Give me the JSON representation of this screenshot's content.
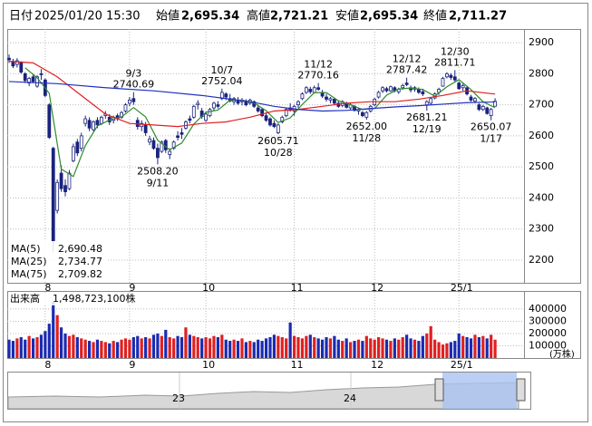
{
  "header": {
    "date_label": "日付",
    "datetime": "2025/01/20 15:30",
    "items": [
      {
        "label": "始値",
        "value": "2,695.34",
        "color": "#000000"
      },
      {
        "label": "高値",
        "value": "2,721.21",
        "color": "#dd0000"
      },
      {
        "label": "安値",
        "value": "2,695.34",
        "color": "#008800"
      },
      {
        "label": "終値",
        "value": "2,711.27",
        "color": "#000000"
      }
    ]
  },
  "chart_data": [
    {
      "type": "candlestick",
      "open": [
        2850,
        2840,
        2830,
        2835,
        2800,
        2770,
        2790,
        2760,
        2800,
        2780,
        2700,
        2560,
        2360,
        2480,
        2440,
        2430,
        2520,
        2580,
        2560,
        2640,
        2650,
        2620,
        2650,
        2640,
        2665,
        2660,
        2650,
        2665,
        2660,
        2680,
        2705,
        2720,
        2650,
        2630,
        2635,
        2580,
        2585,
        2560,
        2550,
        2585,
        2540,
        2560,
        2600,
        2610,
        2625,
        2655,
        2660,
        2700,
        2680,
        2650,
        2665,
        2690,
        2700,
        2720,
        2735,
        2720,
        2710,
        2715,
        2710,
        2712,
        2705,
        2710,
        2690,
        2685,
        2665,
        2655,
        2640,
        2610,
        2645,
        2665,
        2690,
        2680,
        2700,
        2720,
        2740,
        2750,
        2740,
        2755,
        2740,
        2725,
        2715,
        2718,
        2705,
        2698,
        2705,
        2690,
        2695,
        2680,
        2675,
        2660,
        2680,
        2700,
        2725,
        2745,
        2752,
        2745,
        2755,
        2742,
        2755,
        2770,
        2755,
        2750,
        2750,
        2742,
        2700,
        2705,
        2722,
        2740,
        2760,
        2790,
        2795,
        2790,
        2770,
        2755,
        2755,
        2725,
        2712,
        2700,
        2685,
        2690,
        2665,
        2695.34
      ],
      "high": [
        2862,
        2848,
        2850,
        2840,
        2805,
        2790,
        2800,
        2795,
        2815,
        2785,
        2705,
        2565,
        2460,
        2505,
        2460,
        2490,
        2575,
        2590,
        2610,
        2665,
        2660,
        2650,
        2660,
        2665,
        2680,
        2670,
        2665,
        2672,
        2680,
        2705,
        2725,
        2740.69,
        2660,
        2650,
        2645,
        2600,
        2595,
        2575,
        2585,
        2590,
        2560,
        2585,
        2615,
        2625,
        2650,
        2665,
        2700,
        2715,
        2690,
        2675,
        2690,
        2710,
        2712,
        2752.04,
        2740,
        2735,
        2725,
        2725,
        2722,
        2718,
        2720,
        2714,
        2700,
        2690,
        2675,
        2660,
        2650,
        2640,
        2665,
        2690,
        2705,
        2700,
        2715,
        2740,
        2760,
        2758,
        2762,
        2770.16,
        2748,
        2735,
        2725,
        2722,
        2712,
        2715,
        2710,
        2705,
        2700,
        2690,
        2680,
        2680,
        2700,
        2722,
        2745,
        2760,
        2758,
        2762,
        2760,
        2755,
        2768,
        2787.42,
        2762,
        2760,
        2756,
        2752,
        2715,
        2725,
        2740,
        2755,
        2790,
        2805,
        2802,
        2811.71,
        2775,
        2768,
        2760,
        2732,
        2725,
        2705,
        2700,
        2694,
        2690,
        2721.21
      ],
      "low": [
        2835,
        2818,
        2820,
        2800,
        2770,
        2760,
        2770,
        2755,
        2780,
        2725,
        2590,
        2227,
        2350,
        2420,
        2405,
        2425,
        2515,
        2535,
        2550,
        2630,
        2615,
        2615,
        2625,
        2635,
        2655,
        2635,
        2640,
        2648,
        2655,
        2675,
        2695,
        2700,
        2620,
        2615,
        2600,
        2570,
        2555,
        2508.2,
        2545,
        2545,
        2525,
        2555,
        2585,
        2590,
        2620,
        2640,
        2655,
        2685,
        2655,
        2645,
        2660,
        2680,
        2688,
        2715,
        2715,
        2708,
        2700,
        2700,
        2698,
        2695,
        2700,
        2690,
        2675,
        2660,
        2645,
        2630,
        2625,
        2605.71,
        2640,
        2660,
        2678,
        2665,
        2690,
        2715,
        2735,
        2735,
        2738,
        2745,
        2722,
        2710,
        2705,
        2700,
        2690,
        2692,
        2688,
        2685,
        2678,
        2668,
        2660,
        2652,
        2675,
        2695,
        2720,
        2738,
        2740,
        2742,
        2740,
        2735,
        2748,
        2760,
        2740,
        2742,
        2735,
        2728,
        2681.21,
        2700,
        2718,
        2732,
        2758,
        2785,
        2780,
        2775,
        2748,
        2745,
        2730,
        2710,
        2705,
        2680,
        2680,
        2668,
        2650.07,
        2695.34
      ],
      "close": [
        2845,
        2825,
        2842,
        2805,
        2778,
        2785,
        2775,
        2790,
        2797,
        2730,
        2595,
        2262,
        2450,
        2430,
        2420,
        2480,
        2565,
        2545,
        2600,
        2655,
        2625,
        2645,
        2635,
        2660,
        2670,
        2645,
        2660,
        2655,
        2675,
        2700,
        2715,
        2710,
        2630,
        2640,
        2610,
        2590,
        2560,
        2530,
        2580,
        2555,
        2550,
        2580,
        2595,
        2605,
        2645,
        2650,
        2695,
        2705,
        2662,
        2670,
        2685,
        2705,
        2695,
        2740,
        2725,
        2712,
        2720,
        2705,
        2715,
        2700,
        2715,
        2695,
        2680,
        2665,
        2650,
        2635,
        2630,
        2635,
        2660,
        2685,
        2682,
        2695,
        2710,
        2735,
        2755,
        2742,
        2755,
        2750,
        2728,
        2718,
        2720,
        2705,
        2695,
        2710,
        2692,
        2700,
        2682,
        2685,
        2665,
        2675,
        2695,
        2718,
        2740,
        2755,
        2745,
        2758,
        2745,
        2750,
        2762,
        2765,
        2748,
        2755,
        2740,
        2735,
        2710,
        2720,
        2735,
        2750,
        2785,
        2800,
        2788,
        2780,
        2752,
        2762,
        2735,
        2715,
        2720,
        2685,
        2695,
        2672,
        2685,
        2711.27
      ],
      "up_color": "#ffffff",
      "down_color": "#1a237e",
      "outline_color": "#1a237e",
      "xlim": [
        -0.45,
        128.2
      ],
      "xticks": [
        {
          "value": 9,
          "label": "8"
        },
        {
          "value": 30,
          "label": "9"
        },
        {
          "value": 49,
          "label": "10"
        },
        {
          "value": 71,
          "label": "11"
        },
        {
          "value": 91,
          "label": "12"
        },
        {
          "value": 112,
          "label": "25/1"
        }
      ],
      "ylim": [
        2127,
        2944
      ],
      "yticks": [
        2200,
        2300,
        2400,
        2500,
        2600,
        2700,
        2800,
        2900
      ],
      "grid": true,
      "series": [
        {
          "name": "MA(5)",
          "color": "#2e8b2e",
          "last_label": "2,690.48",
          "x": [
            4,
            7,
            10,
            13,
            16,
            19,
            22,
            25,
            28,
            31,
            34,
            37,
            40,
            43,
            46,
            49,
            52,
            55,
            58,
            61,
            64,
            67,
            70,
            73,
            76,
            79,
            82,
            85,
            88,
            91,
            94,
            97,
            100,
            103,
            106,
            109,
            112,
            115,
            118,
            121
          ],
          "values": [
            2819,
            2787,
            2737,
            2493,
            2469,
            2569,
            2632,
            2651,
            2661,
            2691,
            2661,
            2586,
            2555,
            2577,
            2638,
            2676,
            2683,
            2715,
            2715,
            2706,
            2681,
            2643,
            2658,
            2701,
            2739,
            2739,
            2713,
            2700,
            2685,
            2688,
            2731,
            2751,
            2754,
            2749,
            2728,
            2758,
            2781,
            2749,
            2710,
            2690.48
          ]
        },
        {
          "name": "MA(25)",
          "color": "#e02020",
          "last_label": "2,734.77",
          "x": [
            0,
            6,
            12,
            18,
            24,
            30,
            36,
            42,
            48,
            54,
            60,
            66,
            72,
            78,
            84,
            90,
            96,
            102,
            108,
            114,
            120,
            121
          ],
          "values": [
            2840,
            2835,
            2790,
            2730,
            2670,
            2640,
            2635,
            2630,
            2640,
            2645,
            2660,
            2680,
            2685,
            2695,
            2705,
            2710,
            2710,
            2718,
            2730,
            2745,
            2736,
            2734.77
          ]
        },
        {
          "name": "MA(75)",
          "color": "#2030c0",
          "last_label": "2,709.82",
          "x": [
            0,
            12,
            24,
            36,
            48,
            60,
            66,
            72,
            78,
            84,
            90,
            96,
            102,
            108,
            114,
            120,
            121
          ],
          "values": [
            2775,
            2768,
            2755,
            2745,
            2730,
            2710,
            2695,
            2685,
            2680,
            2682,
            2688,
            2693,
            2697,
            2702,
            2707,
            2709,
            2709.82
          ]
        }
      ],
      "annotations": [
        {
          "x": 31,
          "value": 2740.69,
          "label": "2740.69",
          "date": "9/3",
          "side": "high"
        },
        {
          "x": 37,
          "value": 2508.2,
          "label": "2508.20",
          "date": "9/11",
          "side": "low"
        },
        {
          "x": 53,
          "value": 2752.04,
          "label": "2752.04",
          "date": "10/7",
          "side": "high"
        },
        {
          "x": 67,
          "value": 2605.71,
          "label": "2605.71",
          "date": "10/28",
          "side": "low"
        },
        {
          "x": 77,
          "value": 2770.16,
          "label": "2770.16",
          "date": "11/12",
          "side": "high"
        },
        {
          "x": 89,
          "value": 2652,
          "label": "2652.00",
          "date": "11/28",
          "side": "low"
        },
        {
          "x": 99,
          "value": 2787.42,
          "label": "2787.42",
          "date": "12/12",
          "side": "high"
        },
        {
          "x": 104,
          "value": 2681.21,
          "label": "2681.21",
          "date": "12/19",
          "side": "low"
        },
        {
          "x": 111,
          "value": 2811.71,
          "label": "2811.71",
          "date": "12/30",
          "side": "high"
        },
        {
          "x": 120,
          "value": 2650.07,
          "label": "2650.07",
          "date": "1/17",
          "side": "low"
        }
      ]
    },
    {
      "type": "bar",
      "title": "出来高",
      "latest": "1,498,723,100株",
      "unit": "(万株)",
      "values": [
        150000,
        140000,
        160000,
        170000,
        150000,
        180000,
        160000,
        170000,
        190000,
        220000,
        280000,
        460000,
        350000,
        250000,
        200000,
        180000,
        190000,
        170000,
        160000,
        150000,
        140000,
        130000,
        150000,
        140000,
        130000,
        120000,
        140000,
        130000,
        150000,
        160000,
        150000,
        170000,
        180000,
        160000,
        170000,
        160000,
        190000,
        200000,
        180000,
        230000,
        170000,
        160000,
        180000,
        170000,
        250000,
        190000,
        180000,
        170000,
        160000,
        170000,
        160000,
        180000,
        170000,
        190000,
        150000,
        140000,
        150000,
        140000,
        160000,
        130000,
        140000,
        130000,
        150000,
        140000,
        160000,
        170000,
        190000,
        180000,
        170000,
        160000,
        290000,
        180000,
        170000,
        160000,
        180000,
        190000,
        170000,
        160000,
        150000,
        170000,
        160000,
        180000,
        150000,
        140000,
        160000,
        130000,
        140000,
        150000,
        140000,
        180000,
        160000,
        150000,
        170000,
        160000,
        150000,
        140000,
        160000,
        150000,
        170000,
        190000,
        160000,
        150000,
        140000,
        180000,
        200000,
        260000,
        150000,
        130000,
        110000,
        120000,
        130000,
        140000,
        200000,
        180000,
        170000,
        160000,
        190000,
        170000,
        180000,
        160000,
        190000,
        149872
      ],
      "up_color": "#e02020",
      "down_color": "#1a2bb0",
      "xlim": [
        -0.45,
        128.2
      ],
      "xticks": [
        {
          "value": 9,
          "label": "8"
        },
        {
          "value": 30,
          "label": "9"
        },
        {
          "value": 49,
          "label": "10"
        },
        {
          "value": 71,
          "label": "11"
        },
        {
          "value": 91,
          "label": "12"
        },
        {
          "value": 112,
          "label": "25/1"
        }
      ],
      "ylim": [
        0,
        540000
      ],
      "yticks": [
        100000,
        200000,
        300000,
        400000
      ],
      "grid": true
    }
  ],
  "navigator": {
    "labels": [
      "23",
      "24"
    ]
  }
}
